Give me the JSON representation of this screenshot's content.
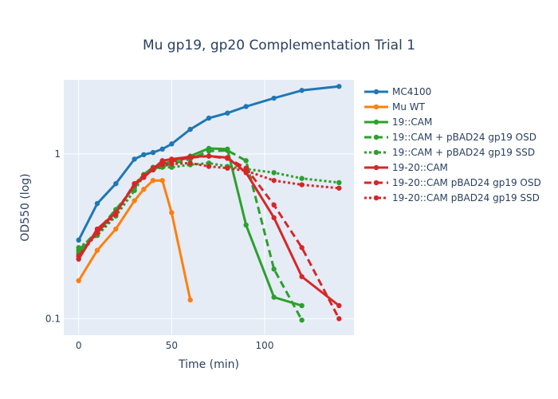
{
  "chart_data": {
    "type": "line",
    "title": "Mu gp19, gp20 Complementation Trial 1",
    "xlabel": "Time (min)",
    "ylabel": "OD550 (log)",
    "xlim": [
      -8,
      148
    ],
    "ylim_log10": [
      -1.1,
      0.45
    ],
    "y_scale": "log",
    "grid": true,
    "legend_position": "right",
    "x_ticks": [
      {
        "value": 0,
        "label": "0"
      },
      {
        "value": 50,
        "label": "50"
      },
      {
        "value": 100,
        "label": "100"
      }
    ],
    "y_ticks": [
      {
        "value": 0.1,
        "label": "0.1"
      },
      {
        "value": 1,
        "label": "1"
      }
    ],
    "series": [
      {
        "name": "MC4100",
        "color": "#1f77b4",
        "dash": "solid",
        "x": [
          0,
          10,
          20,
          30,
          35,
          40,
          45,
          50,
          60,
          70,
          80,
          90,
          105,
          120,
          140
        ],
        "y": [
          0.3,
          0.5,
          0.66,
          0.93,
          0.99,
          1.02,
          1.07,
          1.15,
          1.41,
          1.65,
          1.77,
          1.94,
          2.18,
          2.43,
          2.57
        ]
      },
      {
        "name": "Mu WT",
        "color": "#ff7f0e",
        "dash": "solid",
        "x": [
          0,
          10,
          20,
          30,
          35,
          40,
          45,
          50,
          60
        ],
        "y": [
          0.17,
          0.26,
          0.35,
          0.52,
          0.61,
          0.69,
          0.69,
          0.44,
          0.13
        ]
      },
      {
        "name": "19::CAM",
        "color": "#2ca02c",
        "dash": "solid",
        "x": [
          0,
          10,
          20,
          30,
          35,
          40,
          45,
          50,
          60,
          70,
          80,
          90,
          105,
          120
        ],
        "y": [
          0.25,
          0.33,
          0.45,
          0.64,
          0.75,
          0.83,
          0.87,
          0.9,
          0.97,
          1.08,
          1.07,
          0.37,
          0.135,
          0.12
        ]
      },
      {
        "name": "19::CAM + pBAD24 gp19 OSD",
        "color": "#2ca02c",
        "dash": "dash",
        "x": [
          0,
          10,
          20,
          30,
          35,
          40,
          45,
          50,
          60,
          70,
          80,
          90,
          105,
          120
        ],
        "y": [
          0.26,
          0.34,
          0.46,
          0.63,
          0.74,
          0.81,
          0.84,
          0.87,
          0.93,
          1.04,
          1.05,
          0.91,
          0.2,
          0.098
        ]
      },
      {
        "name": "19::CAM + pBAD24 gp19 SSD",
        "color": "#2ca02c",
        "dash": "dot",
        "x": [
          0,
          10,
          20,
          30,
          35,
          40,
          45,
          50,
          60,
          70,
          80,
          90,
          105,
          120,
          140
        ],
        "y": [
          0.27,
          0.32,
          0.42,
          0.6,
          0.74,
          0.8,
          0.83,
          0.83,
          0.86,
          0.88,
          0.84,
          0.81,
          0.77,
          0.71,
          0.67
        ]
      },
      {
        "name": "19-20::CAM",
        "color": "#d62728",
        "dash": "solid",
        "x": [
          0,
          10,
          20,
          30,
          35,
          40,
          45,
          50,
          60,
          70,
          80,
          90,
          105,
          120,
          140
        ],
        "y": [
          0.23,
          0.35,
          0.44,
          0.65,
          0.72,
          0.81,
          0.91,
          0.93,
          0.96,
          0.97,
          0.95,
          0.77,
          0.41,
          0.18,
          0.12
        ]
      },
      {
        "name": "19-20::CAM pBAD24 gp19 OSD",
        "color": "#d62728",
        "dash": "dash",
        "x": [
          0,
          10,
          20,
          30,
          35,
          40,
          45,
          50,
          60,
          70,
          80,
          90,
          105,
          120,
          140
        ],
        "y": [
          0.24,
          0.34,
          0.44,
          0.66,
          0.73,
          0.82,
          0.88,
          0.9,
          0.95,
          0.97,
          0.94,
          0.82,
          0.49,
          0.27,
          0.1
        ]
      },
      {
        "name": "19-20::CAM pBAD24 gp19 SSD",
        "color": "#d62728",
        "dash": "dot",
        "x": [
          0,
          10,
          20,
          30,
          35,
          40,
          45,
          50,
          60,
          70,
          80,
          90,
          105,
          120,
          140
        ],
        "y": [
          0.24,
          0.33,
          0.43,
          0.66,
          0.74,
          0.8,
          0.86,
          0.87,
          0.88,
          0.84,
          0.82,
          0.79,
          0.69,
          0.65,
          0.62
        ]
      }
    ]
  }
}
